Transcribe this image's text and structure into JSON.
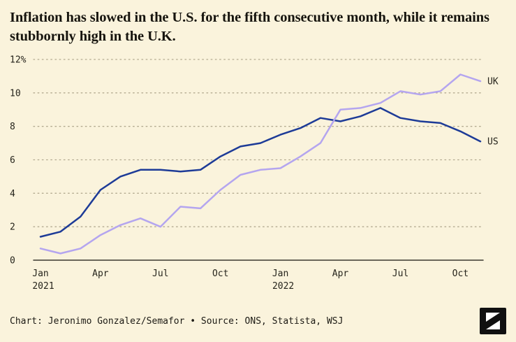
{
  "title": "Inflation has slowed in the U.S. for the fifth consecutive month, while it remains stubbornly high in the U.K.",
  "footer": {
    "credit": "Chart: Jeronimo Gonzalez/Semafor • Source: ONS, Statista, WSJ",
    "logo": "semafor-logo"
  },
  "colors": {
    "background": "#faf3dc",
    "us": "#1d3b97",
    "uk": "#b4a5ef",
    "grid": "#b3aa90",
    "axis": "#3a382f",
    "text": "#26241c"
  },
  "chart_data": {
    "type": "line",
    "x": [
      "Jan 2021",
      "Feb 2021",
      "Mar 2021",
      "Apr 2021",
      "May 2021",
      "Jun 2021",
      "Jul 2021",
      "Aug 2021",
      "Sep 2021",
      "Oct 2021",
      "Nov 2021",
      "Dec 2021",
      "Jan 2022",
      "Feb 2022",
      "Mar 2022",
      "Apr 2022",
      "May 2022",
      "Jun 2022",
      "Jul 2022",
      "Aug 2022",
      "Sep 2022",
      "Oct 2022",
      "Nov 2022"
    ],
    "series": [
      {
        "name": "US",
        "color_key": "us",
        "values": [
          1.4,
          1.7,
          2.6,
          4.2,
          5.0,
          5.4,
          5.4,
          5.3,
          5.4,
          6.2,
          6.8,
          7.0,
          7.5,
          7.9,
          8.5,
          8.3,
          8.6,
          9.1,
          8.5,
          8.3,
          8.2,
          7.7,
          7.1
        ]
      },
      {
        "name": "UK",
        "color_key": "uk",
        "values": [
          0.7,
          0.4,
          0.7,
          1.5,
          2.1,
          2.5,
          2.0,
          3.2,
          3.1,
          4.2,
          5.1,
          5.4,
          5.5,
          6.2,
          7.0,
          9.0,
          9.1,
          9.4,
          10.1,
          9.9,
          10.1,
          11.1,
          10.7
        ]
      }
    ],
    "ylabel": "",
    "xlabel": "",
    "ylim": [
      0,
      12
    ],
    "yticks": [
      {
        "v": 0,
        "label": "0"
      },
      {
        "v": 2,
        "label": "2"
      },
      {
        "v": 4,
        "label": "4"
      },
      {
        "v": 6,
        "label": "6"
      },
      {
        "v": 8,
        "label": "8"
      },
      {
        "v": 10,
        "label": "10"
      },
      {
        "v": 12,
        "label": "12%"
      }
    ],
    "xticks": [
      {
        "i": 0,
        "month": "Jan",
        "year": "2021"
      },
      {
        "i": 3,
        "month": "Apr"
      },
      {
        "i": 6,
        "month": "Jul"
      },
      {
        "i": 9,
        "month": "Oct"
      },
      {
        "i": 12,
        "month": "Jan",
        "year": "2022"
      },
      {
        "i": 15,
        "month": "Apr"
      },
      {
        "i": 18,
        "month": "Jul"
      },
      {
        "i": 21,
        "month": "Oct"
      }
    ],
    "grid": "dotted-horizontal",
    "legend_position": "line-end-labels"
  }
}
